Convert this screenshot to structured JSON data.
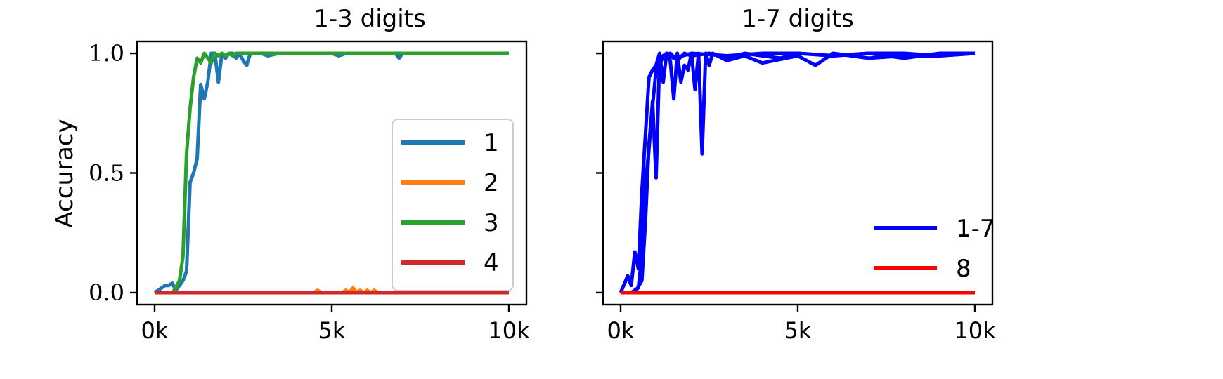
{
  "chart_data": [
    {
      "type": "line",
      "title": "1-3 digits",
      "xlabel": "",
      "ylabel": "Accuracy",
      "xlim": [
        0,
        10000
      ],
      "ylim": [
        -0.05,
        1.05
      ],
      "xticks": [
        0,
        5000,
        10000
      ],
      "xtick_labels": [
        "0k",
        "5k",
        "10k"
      ],
      "yticks": [
        0.0,
        0.5,
        1.0
      ],
      "ytick_labels": [
        "0.0",
        "0.5",
        "1.0"
      ],
      "legend": "right",
      "series": [
        {
          "name": "1",
          "color": "#1f77b4",
          "x": [
            0,
            200,
            300,
            400,
            500,
            600,
            700,
            800,
            900,
            1000,
            1100,
            1200,
            1300,
            1400,
            1500,
            1600,
            1700,
            1800,
            1900,
            2000,
            2100,
            2200,
            2300,
            2400,
            2500,
            2600,
            2700,
            2800,
            3000,
            3200,
            3500,
            4000,
            5000,
            5200,
            5400,
            6000,
            6800,
            6900,
            7000,
            7200,
            8000,
            9000,
            10000
          ],
          "y": [
            0.0,
            0.02,
            0.03,
            0.03,
            0.04,
            0.01,
            0.03,
            0.05,
            0.09,
            0.46,
            0.5,
            0.56,
            0.87,
            0.81,
            0.88,
            1.0,
            1.0,
            0.88,
            1.0,
            0.98,
            1.0,
            1.0,
            0.98,
            1.0,
            0.97,
            0.95,
            1.0,
            1.0,
            1.0,
            0.99,
            1.0,
            1.0,
            1.0,
            0.99,
            1.0,
            1.0,
            1.0,
            0.98,
            1.0,
            1.0,
            1.0,
            1.0,
            1.0
          ]
        },
        {
          "name": "2",
          "color": "#ff7f0e",
          "x": [
            0,
            4500,
            4600,
            4700,
            5300,
            5400,
            5500,
            5600,
            5700,
            5800,
            5900,
            6000,
            6100,
            6200,
            6300,
            6500,
            7000,
            8000,
            9000,
            10000
          ],
          "y": [
            0.0,
            0.0,
            0.01,
            0.0,
            0.0,
            0.01,
            0.0,
            0.02,
            0.0,
            0.01,
            0.0,
            0.01,
            0.0,
            0.01,
            0.0,
            0.0,
            0.0,
            0.0,
            0.0,
            0.0
          ]
        },
        {
          "name": "3",
          "color": "#2ca02c",
          "x": [
            0,
            300,
            500,
            600,
            700,
            800,
            900,
            1000,
            1100,
            1200,
            1300,
            1400,
            1500,
            1600,
            1700,
            1800,
            1900,
            2000,
            2100,
            2200,
            2300,
            2500,
            3000,
            4000,
            5000,
            6000,
            7000,
            8000,
            9000,
            10000
          ],
          "y": [
            0.0,
            0.0,
            0.0,
            0.02,
            0.05,
            0.15,
            0.58,
            0.77,
            0.9,
            0.98,
            0.96,
            1.0,
            0.98,
            0.96,
            1.0,
            0.99,
            1.0,
            0.99,
            1.0,
            0.99,
            1.0,
            1.0,
            1.0,
            1.0,
            1.0,
            1.0,
            1.0,
            1.0,
            1.0,
            1.0
          ]
        },
        {
          "name": "4",
          "color": "#d62728",
          "x": [
            0,
            10000
          ],
          "y": [
            0.0,
            0.0
          ]
        }
      ]
    },
    {
      "type": "line",
      "title": "1-7 digits",
      "xlabel": "",
      "ylabel": "",
      "xlim": [
        0,
        10000
      ],
      "ylim": [
        -0.05,
        1.05
      ],
      "xticks": [
        0,
        5000,
        10000
      ],
      "xtick_labels": [
        "0k",
        "5k",
        "10k"
      ],
      "yticks": [
        0.0,
        0.5,
        1.0
      ],
      "ytick_labels": [],
      "legend": "lower-right",
      "series": [
        {
          "name": "1-7",
          "color": "#0000ff",
          "x": [
            0,
            200,
            300,
            400,
            500,
            600,
            700,
            800,
            900,
            1000,
            1100,
            1200,
            1300,
            1400,
            1500,
            1600,
            1700,
            1800,
            1900,
            2000,
            2100,
            2200,
            2300,
            2400,
            2500,
            2600,
            3000,
            3500,
            4000,
            5000,
            5500,
            6000,
            7000,
            8000,
            9000,
            10000
          ],
          "y": [
            0.0,
            0.07,
            0.03,
            0.17,
            0.1,
            0.42,
            0.66,
            0.9,
            0.93,
            0.95,
            1.0,
            0.88,
            1.0,
            0.97,
            0.81,
            1.0,
            0.88,
            0.95,
            0.93,
            1.0,
            0.85,
            1.0,
            0.58,
            1.0,
            0.95,
            1.0,
            0.97,
            0.99,
            0.96,
            0.99,
            0.95,
            1.0,
            0.98,
            0.99,
            0.99,
            1.0
          ]
        },
        {
          "name": "",
          "color": "#0000ff",
          "x": [
            0,
            300,
            500,
            600,
            700,
            800,
            900,
            1000,
            1100,
            1200,
            1400,
            1600,
            1800,
            2000,
            2500,
            3000,
            3500,
            4000,
            4500,
            5000,
            6000,
            7000,
            8000,
            9000,
            10000
          ],
          "y": [
            0.0,
            0.0,
            0.02,
            0.15,
            0.45,
            0.6,
            0.8,
            0.48,
            0.98,
            0.99,
            1.0,
            0.97,
            1.0,
            0.99,
            1.0,
            0.98,
            1.0,
            0.99,
            0.98,
            1.0,
            0.99,
            1.0,
            0.98,
            1.0,
            1.0
          ]
        },
        {
          "name": "",
          "color": "#0000ff",
          "x": [
            0,
            400,
            600,
            700,
            800,
            900,
            1000,
            1100,
            1200,
            1300,
            1500,
            2000,
            3000,
            4000,
            5000,
            6000,
            7000,
            8000,
            9000,
            10000
          ],
          "y": [
            0.0,
            0.0,
            0.05,
            0.3,
            0.62,
            0.78,
            0.93,
            0.95,
            0.99,
            1.0,
            0.98,
            1.0,
            0.99,
            1.0,
            1.0,
            0.99,
            1.0,
            1.0,
            0.99,
            1.0
          ]
        },
        {
          "name": "8",
          "color": "#ff0000",
          "x": [
            0,
            10000
          ],
          "y": [
            0.0,
            0.0
          ]
        }
      ]
    }
  ]
}
